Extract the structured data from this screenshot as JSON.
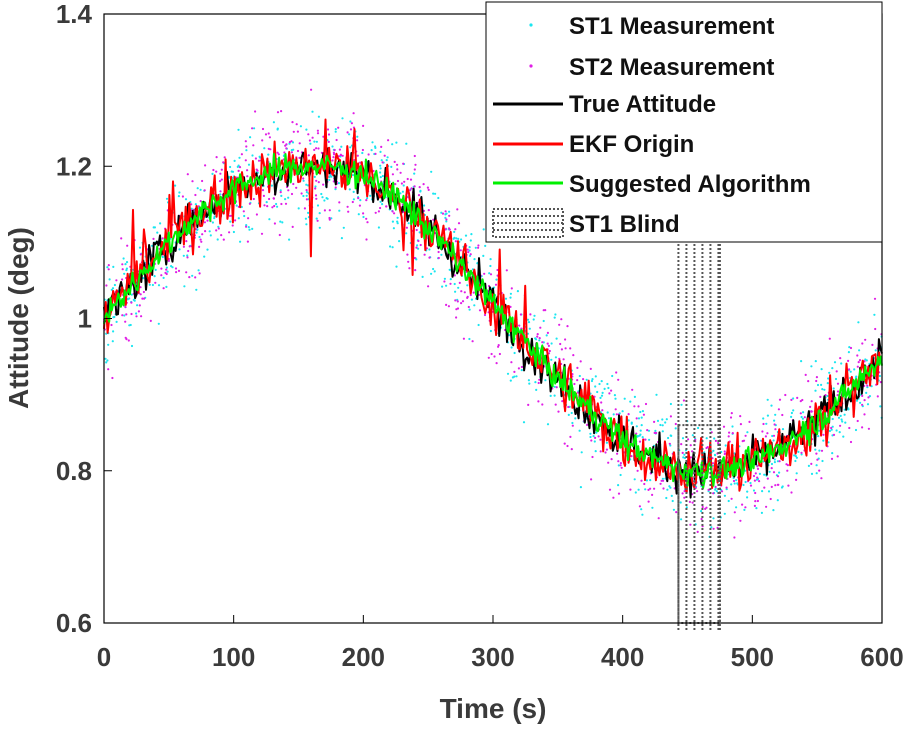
{
  "chart_data": {
    "type": "line",
    "title": "",
    "xlabel": "Time (s)",
    "ylabel": "Attitude (deg)",
    "xlim": [
      0,
      600
    ],
    "ylim": [
      0.6,
      1.4
    ],
    "grid": false,
    "legend_position": "top-right",
    "xticks": [
      0,
      100,
      200,
      300,
      400,
      500,
      600
    ],
    "xtick_labels": [
      "0",
      "100",
      "200",
      "300",
      "400",
      "500",
      "600"
    ],
    "yticks": [
      0.6,
      0.8,
      1.0,
      1.2,
      1.4
    ],
    "ytick_labels": [
      "0.6",
      "0.8",
      "1",
      "1.2",
      "1.4"
    ],
    "true_attitude": {
      "x": [
        0,
        25,
        50,
        75,
        100,
        125,
        150,
        175,
        200,
        225,
        250,
        275,
        300,
        325,
        350,
        375,
        400,
        425,
        450,
        475,
        500,
        525,
        550,
        575,
        600
      ],
      "y": [
        1.0,
        1.05,
        1.1,
        1.14,
        1.17,
        1.19,
        1.2,
        1.2,
        1.19,
        1.16,
        1.12,
        1.07,
        1.02,
        0.97,
        0.92,
        0.88,
        0.84,
        0.815,
        0.8,
        0.8,
        0.81,
        0.835,
        0.865,
        0.905,
        0.95
      ]
    },
    "series": [
      {
        "name": "ST1 Measurement",
        "style": "dots",
        "color": "#19e6f0",
        "noise": 0.06
      },
      {
        "name": "ST2 Measurement",
        "style": "dots",
        "color": "#e01ee6",
        "noise": 0.06
      },
      {
        "name": "True Attitude",
        "style": "line",
        "color": "#000000",
        "noise": 0.025
      },
      {
        "name": "EKF Origin",
        "style": "line",
        "color": "#ff0000",
        "noise": 0.03
      },
      {
        "name": "Suggested Algorithm",
        "style": "line",
        "color": "#00f000",
        "noise": 0.015
      }
    ],
    "blind_region": {
      "name": "ST1 Blind",
      "x_start": 443,
      "x_end": 475,
      "color": "#555555"
    }
  }
}
